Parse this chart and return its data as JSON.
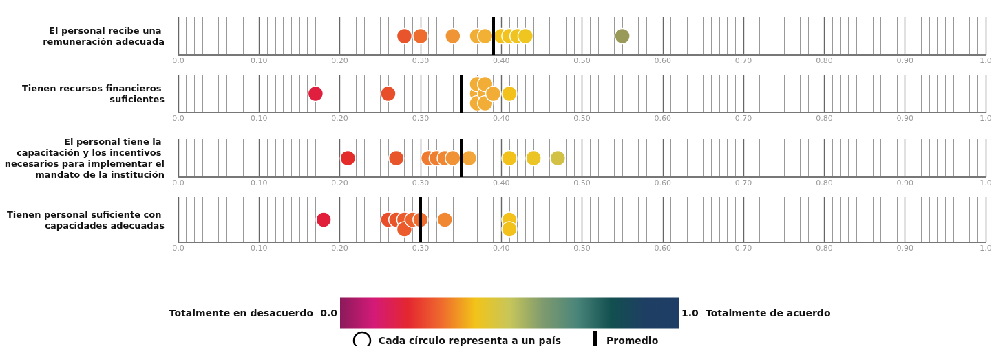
{
  "chart_data": [
    {
      "type": "scatter",
      "orientation": "horizontal",
      "categories": [
        "El personal recibe una remuneración adecuada"
      ],
      "series": [
        {
          "x": [
            "El personal recibe una remuneración adecuada",
            "El personal recibe una remuneración adecuada",
            "El personal recibe una remuneración adecuada",
            "El personal recibe una remuneración adecuada",
            "El personal recibe una remuneración adecuada",
            "El personal recibe una remuneración adecuada",
            "El personal recibe una remuneración adecuada",
            "El personal recibe una remuneración adecuada",
            "El personal recibe una remuneración adecuada",
            "El personal recibe una remuneración adecuada"
          ],
          "values": [
            0.28,
            0.3,
            0.34,
            0.37,
            0.38,
            0.4,
            0.41,
            0.42,
            0.43,
            0.55
          ],
          "colors": [
            "#e8542c",
            "#ee6c2d",
            "#f09536",
            "#f2ad36",
            "#f2b034",
            "#f2c11e",
            "#f2c31c",
            "#f0c420",
            "#efc61f",
            "#9a9a58"
          ]
        }
      ],
      "marker": "circle",
      "grid": "x",
      "xlim": [
        0,
        1
      ],
      "xticks": [
        {
          "value": 0,
          "label": "0.0"
        },
        {
          "value": 0.1,
          "label": "0.10"
        },
        {
          "value": 0.2,
          "label": "0.20"
        },
        {
          "value": 0.3,
          "label": "0.30"
        },
        {
          "value": 0.4,
          "label": "0.40"
        },
        {
          "value": 0.5,
          "label": "0.50"
        },
        {
          "value": 0.6,
          "label": "0.60"
        },
        {
          "value": 0.7,
          "label": "0.70"
        },
        {
          "value": 0.8,
          "label": "0.80"
        },
        {
          "value": 0.9,
          "label": "0.90"
        },
        {
          "value": 1,
          "label": "1.0"
        }
      ],
      "ref_lines": [
        {
          "axis": "x",
          "value": 0.39
        }
      ]
    },
    {
      "type": "scatter",
      "orientation": "horizontal",
      "categories": [
        "Tienen recursos financieros suficientes"
      ],
      "series": [
        {
          "x": [
            "Tienen recursos financieros suficientes",
            "Tienen recursos financieros suficientes",
            "Tienen recursos financieros suficientes",
            "Tienen recursos financieros suficientes",
            "Tienen recursos financieros suficientes",
            "Tienen recursos financieros suficientes",
            "Tienen recursos financieros suficientes",
            "Tienen recursos financieros suficientes",
            "Tienen recursos financieros suficientes",
            "Tienen recursos financieros suficientes"
          ],
          "values": [
            0.17,
            0.26,
            0.37,
            0.37,
            0.37,
            0.38,
            0.38,
            0.38,
            0.39,
            0.41
          ],
          "colors": [
            "#e01f3f",
            "#e84e2a",
            "#f2ad36",
            "#f2ad36",
            "#f2ad36",
            "#f2ad36",
            "#f2ad36",
            "#f2ad36",
            "#f2ad36",
            "#f2c11c"
          ]
        }
      ],
      "marker": "circle",
      "grid": "x",
      "xlim": [
        0,
        1
      ],
      "xticks": [
        {
          "value": 0,
          "label": "0.0"
        },
        {
          "value": 0.1,
          "label": "0.10"
        },
        {
          "value": 0.2,
          "label": "0.20"
        },
        {
          "value": 0.3,
          "label": "0.30"
        },
        {
          "value": 0.4,
          "label": "0.40"
        },
        {
          "value": 0.5,
          "label": "0.50"
        },
        {
          "value": 0.6,
          "label": "0.60"
        },
        {
          "value": 0.7,
          "label": "0.70"
        },
        {
          "value": 0.8,
          "label": "0.80"
        },
        {
          "value": 0.9,
          "label": "0.90"
        },
        {
          "value": 1,
          "label": "1.0"
        }
      ],
      "ref_lines": [
        {
          "axis": "x",
          "value": 0.35
        }
      ]
    },
    {
      "type": "scatter",
      "orientation": "horizontal",
      "categories": [
        "El personal tiene la capacitación y los incentivos necesarios para implementar el mandato de la institución"
      ],
      "series": [
        {
          "x": [
            "El personal tiene la capacitación y los incentivos necesarios para implementar el mandato de la institución",
            "El personal tiene la capacitación y los incentivos necesarios para implementar el mandato de la institución",
            "El personal tiene la capacitación y los incentivos necesarios para implementar el mandato de la institución",
            "El personal tiene la capacitación y los incentivos necesarios para implementar el mandato de la institución",
            "El personal tiene la capacitación y los incentivos necesarios para implementar el mandato de la institución",
            "El personal tiene la capacitación y los incentivos necesarios para implementar el mandato de la institución",
            "El personal tiene la capacitación y los incentivos necesarios para implementar el mandato de la institución",
            "El personal tiene la capacitación y los incentivos necesarios para implementar el mandato de la institución",
            "El personal tiene la capacitación y los incentivos necesarios para implementar el mandato de la institución",
            "El personal tiene la capacitación y los incentivos necesarios para implementar el mandato de la institución"
          ],
          "values": [
            0.21,
            0.27,
            0.31,
            0.32,
            0.33,
            0.34,
            0.36,
            0.41,
            0.44,
            0.47
          ],
          "colors": [
            "#e42c2a",
            "#e9552b",
            "#ef7a30",
            "#ef7f30",
            "#f08733",
            "#f09236",
            "#f2a63a",
            "#f2c11c",
            "#ebc426",
            "#d3c145"
          ]
        }
      ],
      "marker": "circle",
      "grid": "x",
      "xlim": [
        0,
        1
      ],
      "xticks": [
        {
          "value": 0,
          "label": "0.0"
        },
        {
          "value": 0.1,
          "label": "0.10"
        },
        {
          "value": 0.2,
          "label": "0.20"
        },
        {
          "value": 0.3,
          "label": "0.30"
        },
        {
          "value": 0.4,
          "label": "0.40"
        },
        {
          "value": 0.5,
          "label": "0.50"
        },
        {
          "value": 0.6,
          "label": "0.60"
        },
        {
          "value": 0.7,
          "label": "0.70"
        },
        {
          "value": 0.8,
          "label": "0.80"
        },
        {
          "value": 0.9,
          "label": "0.90"
        },
        {
          "value": 1,
          "label": "1.0"
        }
      ],
      "ref_lines": [
        {
          "axis": "x",
          "value": 0.35
        }
      ]
    },
    {
      "type": "scatter",
      "orientation": "horizontal",
      "categories": [
        "Tienen personal suficiente con capacidades adecuadas"
      ],
      "series": [
        {
          "x": [
            "Tienen personal suficiente con capacidades adecuadas",
            "Tienen personal suficiente con capacidades adecuadas",
            "Tienen personal suficiente con capacidades adecuadas",
            "Tienen personal suficiente con capacidades adecuadas",
            "Tienen personal suficiente con capacidades adecuadas",
            "Tienen personal suficiente con capacidades adecuadas",
            "Tienen personal suficiente con capacidades adecuadas",
            "Tienen personal suficiente con capacidades adecuadas",
            "Tienen personal suficiente con capacidades adecuadas",
            "Tienen personal suficiente con capacidades adecuadas"
          ],
          "values": [
            0.18,
            0.26,
            0.27,
            0.28,
            0.28,
            0.29,
            0.3,
            0.33,
            0.41,
            0.41
          ],
          "colors": [
            "#e21f3a",
            "#e84e2a",
            "#e9552b",
            "#eb5b2b",
            "#eb5b2b",
            "#ec642c",
            "#ee6c2d",
            "#f08733",
            "#f2c11c",
            "#f2c11c"
          ]
        }
      ],
      "marker": "circle",
      "grid": "x",
      "xlim": [
        0,
        1
      ],
      "xticks": [
        {
          "value": 0,
          "label": "0.0"
        },
        {
          "value": 0.1,
          "label": "0.10"
        },
        {
          "value": 0.2,
          "label": "0.20"
        },
        {
          "value": 0.3,
          "label": "0.30"
        },
        {
          "value": 0.4,
          "label": "0.40"
        },
        {
          "value": 0.5,
          "label": "0.50"
        },
        {
          "value": 0.6,
          "label": "0.60"
        },
        {
          "value": 0.7,
          "label": "0.70"
        },
        {
          "value": 0.8,
          "label": "0.80"
        },
        {
          "value": 0.9,
          "label": "0.90"
        },
        {
          "value": 1,
          "label": "1.0"
        }
      ],
      "ref_lines": [
        {
          "axis": "x",
          "value": 0.3
        }
      ],
      "clim": [
        0,
        1
      ],
      "cticks": [
        {
          "value": 0,
          "label": "0.0"
        },
        {
          "value": 1,
          "label": "1.0"
        }
      ],
      "annotations": [
        "Totalmente en desacuerdo",
        "Totalmente de acuerdo",
        "Cada círculo representa a un país",
        "Promedio"
      ]
    }
  ]
}
